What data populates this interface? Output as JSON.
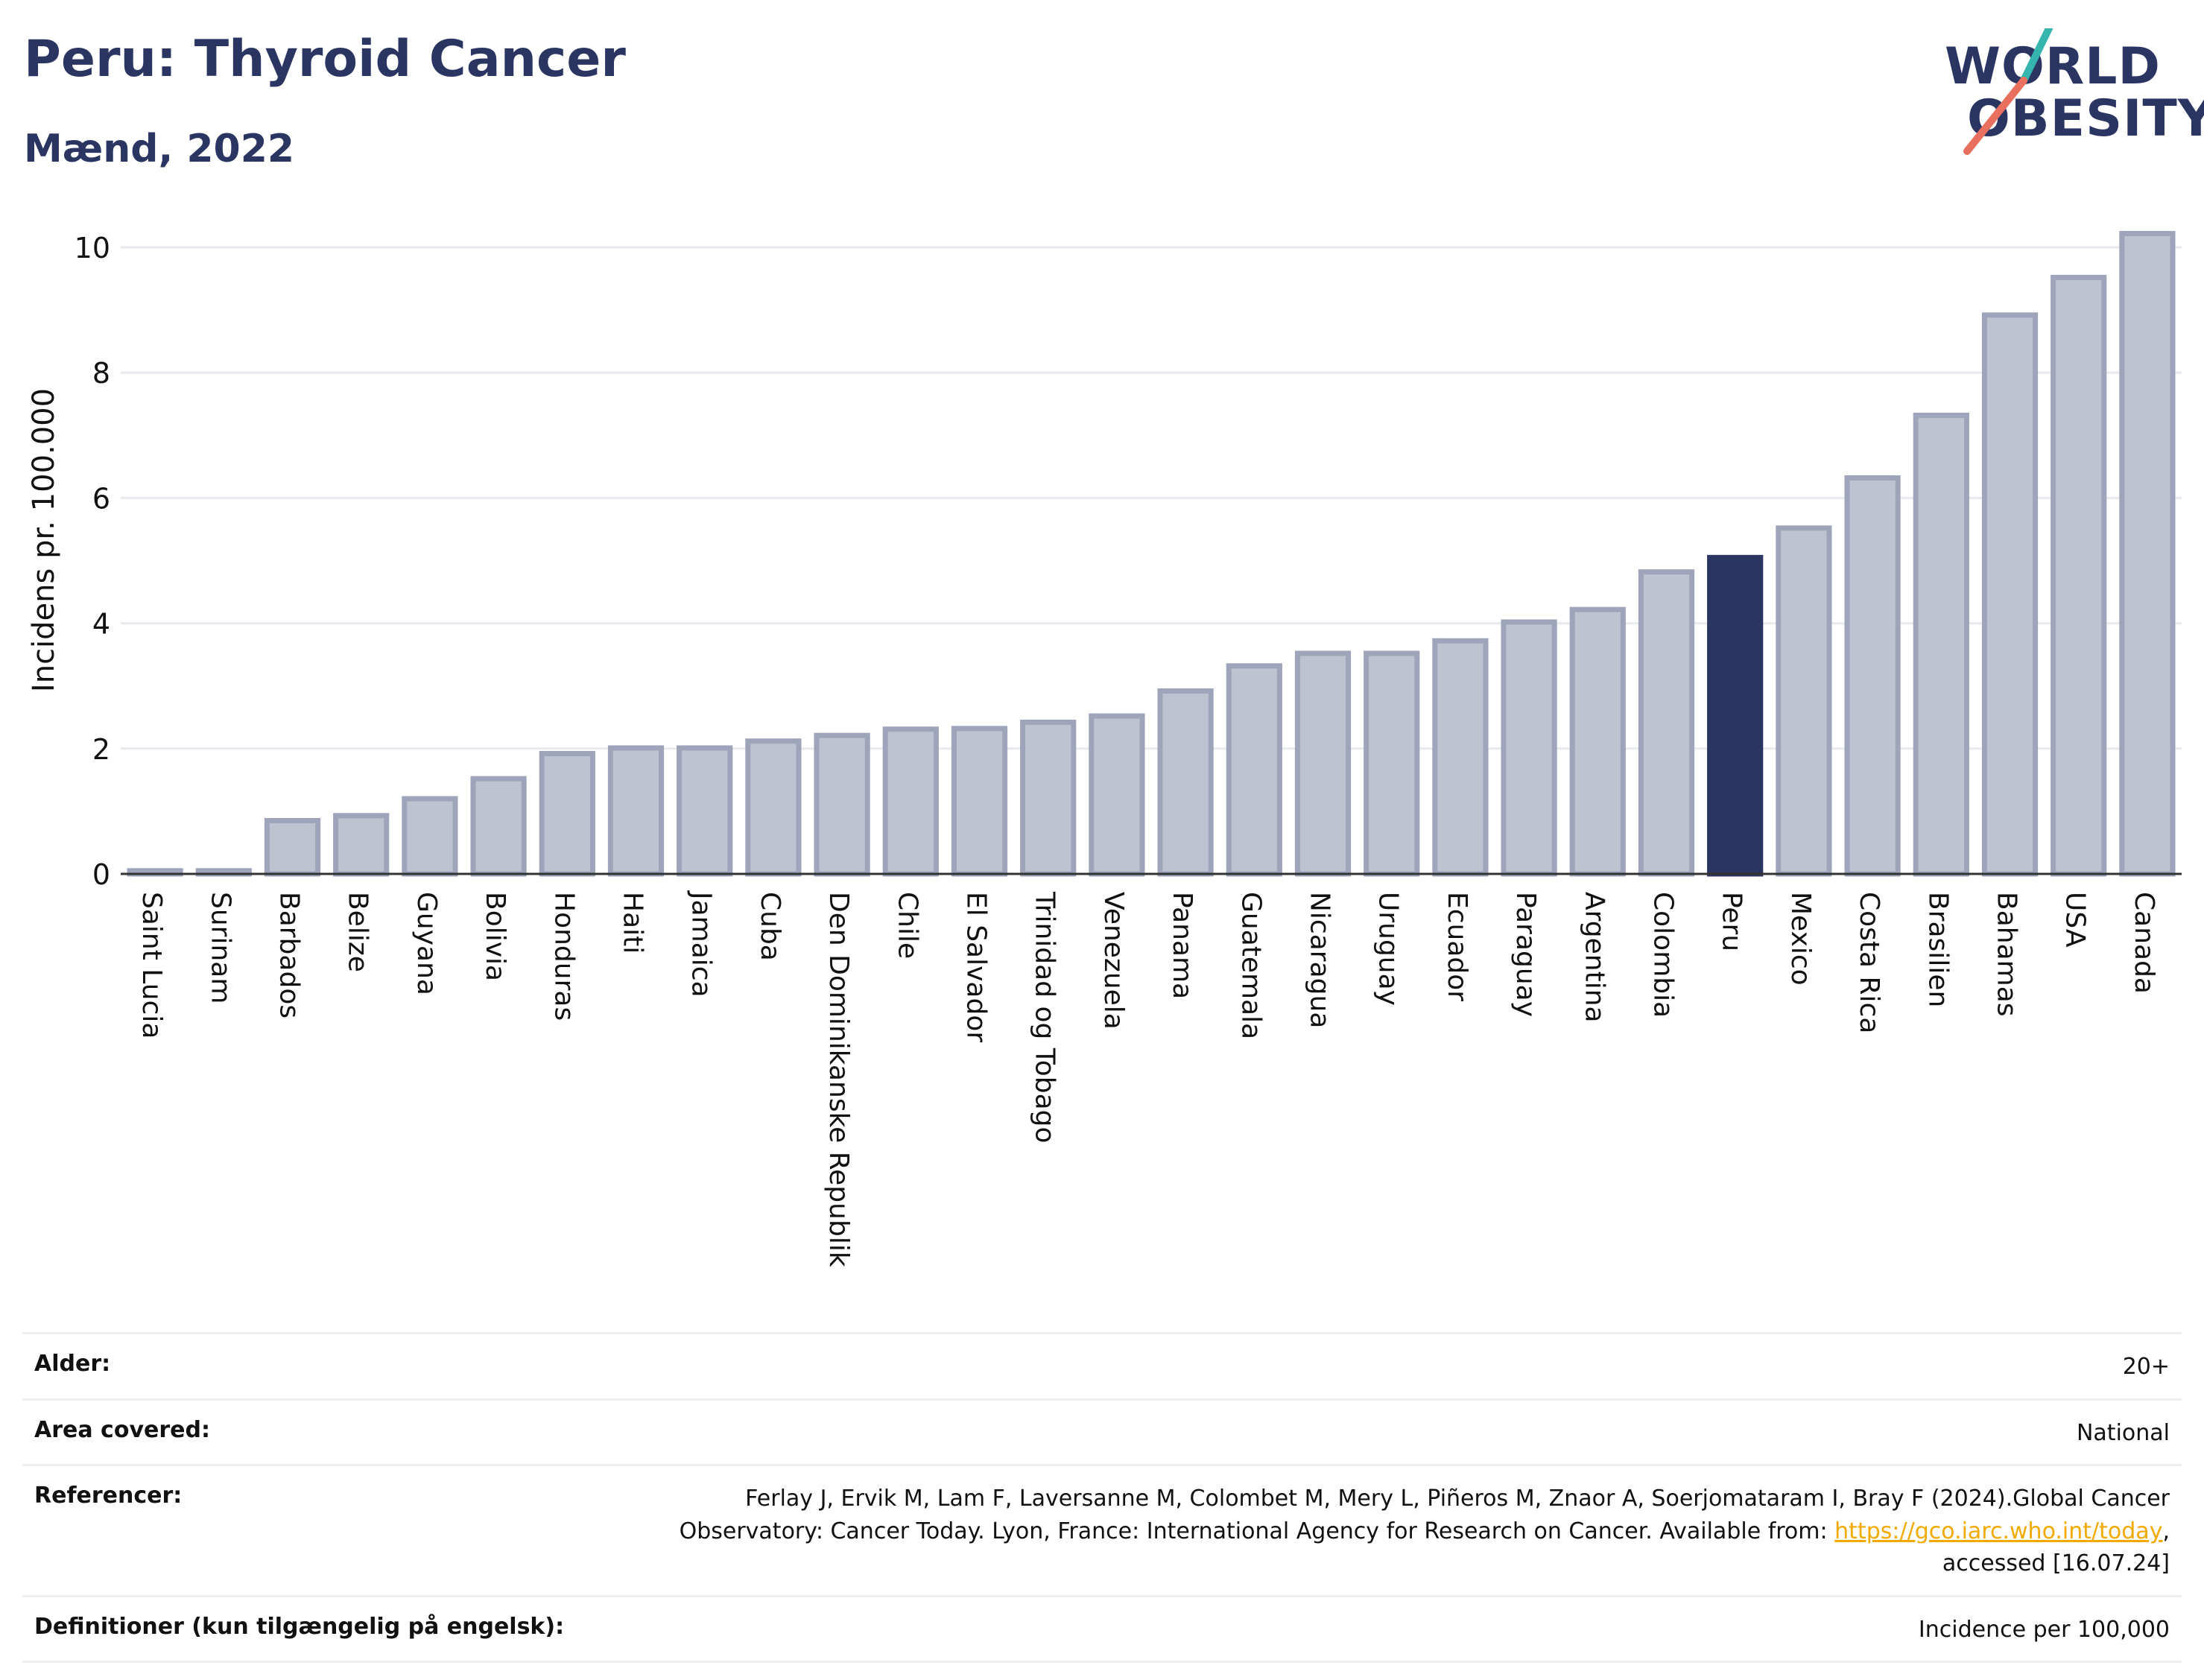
{
  "header": {
    "title": "Peru: Thyroid Cancer",
    "subtitle": "Mænd, 2022"
  },
  "logo": {
    "line1": "WORLD",
    "line2": "OBESITY"
  },
  "colors": {
    "bar": "#bfc3d0",
    "bar_border": "#9ea4b9",
    "highlight": "#2b3561",
    "text": "#111111",
    "grid": "#e8eaef",
    "link": "#f2a900",
    "logo_teal": "#35b5ad",
    "logo_coral": "#e9705f"
  },
  "chart_data": {
    "type": "bar",
    "ylabel": "Incidens pr. 100.000",
    "xlabel": "",
    "ylim": [
      0,
      10.5
    ],
    "yticks": [
      0,
      2,
      4,
      6,
      8,
      10
    ],
    "grid": true,
    "highlight": "Peru",
    "categories": [
      "Saint Lucia",
      "Surinam",
      "Barbados",
      "Belize",
      "Guyana",
      "Bolivia",
      "Honduras",
      "Haiti",
      "Jamaica",
      "Cuba",
      "Den Dominikanske Republik",
      "Chile",
      "El Salvador",
      "Trinidad og Tobago",
      "Venezuela",
      "Panama",
      "Guatemala",
      "Nicaragua",
      "Uruguay",
      "Ecuador",
      "Paraguay",
      "Argentina",
      "Colombia",
      "Peru",
      "Mexico",
      "Costa Rica",
      "Brasilien",
      "Bahamas",
      "USA",
      "Canada"
    ],
    "values": [
      0.05,
      0.05,
      0.85,
      0.93,
      1.2,
      1.52,
      1.92,
      2.01,
      2.01,
      2.12,
      2.21,
      2.31,
      2.32,
      2.42,
      2.52,
      2.92,
      3.32,
      3.52,
      3.52,
      3.72,
      4.02,
      4.22,
      4.82,
      5.05,
      5.52,
      6.32,
      7.32,
      8.92,
      9.52,
      10.22
    ]
  },
  "meta": {
    "age": {
      "label": "Alder:",
      "value": "20+"
    },
    "area": {
      "label": "Area covered:",
      "value": "National"
    },
    "refs": {
      "label": "Referencer:",
      "line1": "Ferlay J, Ervik M, Lam F, Laversanne M, Colombet M, Mery L, Piñeros M, Znaor A, Soerjomataram I, Bray F (2024).Global Cancer",
      "line2_pre": "Observatory: Cancer Today. Lyon, France: International Agency for Research on Cancer. Available from: ",
      "link": "https://gco.iarc.who.int/today",
      "line2_post": ",",
      "line3": "accessed [16.07.24]"
    },
    "defs": {
      "label": "Definitioner (kun tilgængelig på engelsk):",
      "value": "Incidence per 100,000"
    }
  }
}
